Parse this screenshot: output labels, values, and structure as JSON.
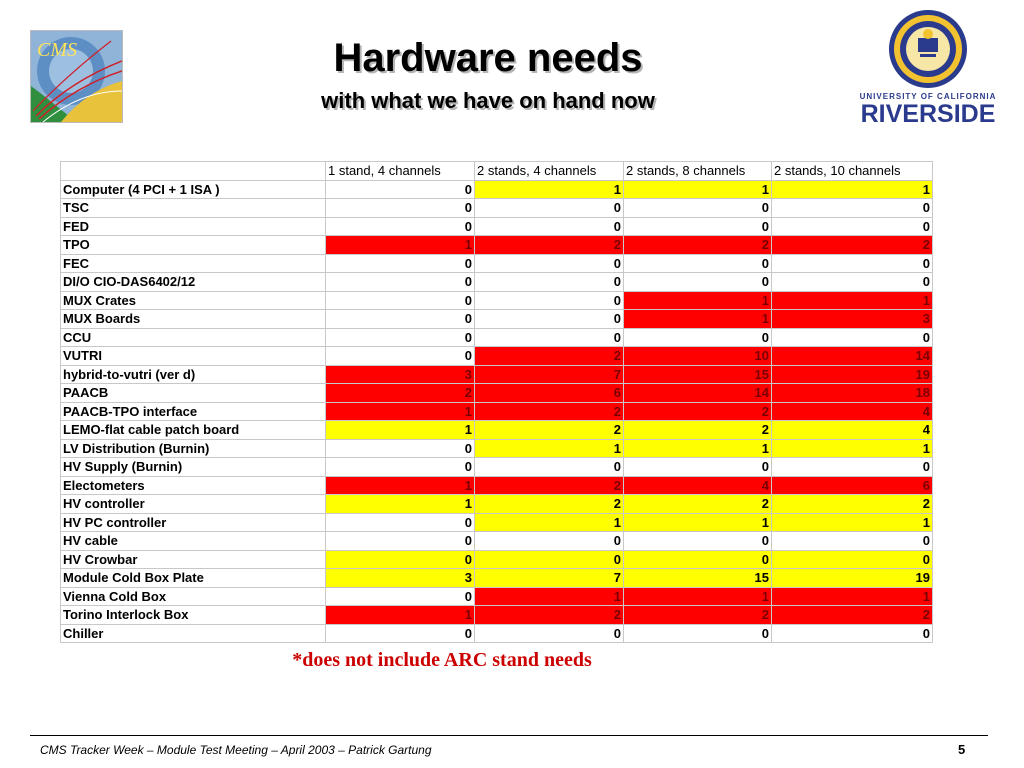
{
  "header": {
    "title": "Hardware needs",
    "subtitle": "with what we have on hand now",
    "cms_logo_text": "CMS",
    "ucr_logo_small": "UNIVERSITY OF CALIFORNIA",
    "ucr_logo_big": "RIVERSIDE"
  },
  "table": {
    "columns": [
      "",
      "1 stand, 4 channels",
      "2 stands, 4 channels",
      "2 stands, 8 channels",
      "2 stands, 10 channels"
    ],
    "rows": [
      {
        "label": "Computer (4 PCI + 1 ISA )",
        "values": [
          "0",
          "1",
          "1",
          "1"
        ],
        "colors": [
          "w",
          "y",
          "y",
          "y"
        ]
      },
      {
        "label": "TSC",
        "values": [
          "0",
          "0",
          "0",
          "0"
        ],
        "colors": [
          "w",
          "w",
          "w",
          "w"
        ]
      },
      {
        "label": "FED",
        "values": [
          "0",
          "0",
          "0",
          "0"
        ],
        "colors": [
          "w",
          "w",
          "w",
          "w"
        ]
      },
      {
        "label": "TPO",
        "values": [
          "1",
          "2",
          "2",
          "2"
        ],
        "colors": [
          "r",
          "r",
          "r",
          "r"
        ]
      },
      {
        "label": "FEC",
        "values": [
          "0",
          "0",
          "0",
          "0"
        ],
        "colors": [
          "w",
          "w",
          "w",
          "w"
        ]
      },
      {
        "label": "DI/O CIO-DAS6402/12",
        "values": [
          "0",
          "0",
          "0",
          "0"
        ],
        "colors": [
          "w",
          "w",
          "w",
          "w"
        ]
      },
      {
        "label": "MUX Crates",
        "values": [
          "0",
          "0",
          "1",
          "1"
        ],
        "colors": [
          "w",
          "w",
          "r",
          "r"
        ]
      },
      {
        "label": "MUX Boards",
        "values": [
          "0",
          "0",
          "1",
          "3"
        ],
        "colors": [
          "w",
          "w",
          "r",
          "r"
        ]
      },
      {
        "label": "CCU",
        "values": [
          "0",
          "0",
          "0",
          "0"
        ],
        "colors": [
          "w",
          "w",
          "w",
          "w"
        ]
      },
      {
        "label": "VUTRI",
        "values": [
          "0",
          "2",
          "10",
          "14"
        ],
        "colors": [
          "w",
          "r",
          "r",
          "r"
        ]
      },
      {
        "label": "hybrid-to-vutri (ver d)",
        "values": [
          "3",
          "7",
          "15",
          "19"
        ],
        "colors": [
          "r",
          "r",
          "r",
          "r"
        ]
      },
      {
        "label": "PAACB",
        "values": [
          "2",
          "6",
          "14",
          "18"
        ],
        "colors": [
          "r",
          "r",
          "r",
          "r"
        ]
      },
      {
        "label": "PAACB-TPO interface",
        "values": [
          "1",
          "2",
          "2",
          "4"
        ],
        "colors": [
          "r",
          "r",
          "r",
          "r"
        ]
      },
      {
        "label": "LEMO-flat cable patch board",
        "values": [
          "1",
          "2",
          "2",
          "4"
        ],
        "colors": [
          "y",
          "y",
          "y",
          "y"
        ]
      },
      {
        "label": "LV Distribution (Burnin)",
        "values": [
          "0",
          "1",
          "1",
          "1"
        ],
        "colors": [
          "w",
          "y",
          "y",
          "y"
        ]
      },
      {
        "label": "HV Supply (Burnin)",
        "values": [
          "0",
          "0",
          "0",
          "0"
        ],
        "colors": [
          "w",
          "w",
          "w",
          "w"
        ]
      },
      {
        "label": "Electometers",
        "values": [
          "1",
          "2",
          "4",
          "6"
        ],
        "colors": [
          "r",
          "r",
          "r",
          "r"
        ]
      },
      {
        "label": "HV controller",
        "values": [
          "1",
          "2",
          "2",
          "2"
        ],
        "colors": [
          "y",
          "y",
          "y",
          "y"
        ]
      },
      {
        "label": "HV PC controller",
        "values": [
          "0",
          "1",
          "1",
          "1"
        ],
        "colors": [
          "w",
          "y",
          "y",
          "y"
        ]
      },
      {
        "label": "HV cable",
        "values": [
          "0",
          "0",
          "0",
          "0"
        ],
        "colors": [
          "w",
          "w",
          "w",
          "w"
        ]
      },
      {
        "label": "HV Crowbar",
        "values": [
          "0",
          "0",
          "0",
          "0"
        ],
        "colors": [
          "y",
          "y",
          "y",
          "y"
        ]
      },
      {
        "label": "Module Cold Box Plate",
        "values": [
          "3",
          "7",
          "15",
          "19"
        ],
        "colors": [
          "y",
          "y",
          "y",
          "y"
        ]
      },
      {
        "label": "Vienna Cold Box",
        "values": [
          "0",
          "1",
          "1",
          "1"
        ],
        "colors": [
          "w",
          "r",
          "r",
          "r"
        ]
      },
      {
        "label": "Torino Interlock Box",
        "values": [
          "1",
          "2",
          "2",
          "2"
        ],
        "colors": [
          "r",
          "r",
          "r",
          "r"
        ]
      },
      {
        "label": "Chiller",
        "values": [
          "0",
          "0",
          "0",
          "0"
        ],
        "colors": [
          "w",
          "w",
          "w",
          "w"
        ]
      }
    ]
  },
  "note": "*does not include ARC stand needs",
  "footer": {
    "text": "CMS Tracker Week – Module Test Meeting – April 2003 – Patrick Gartung",
    "page": "5"
  }
}
